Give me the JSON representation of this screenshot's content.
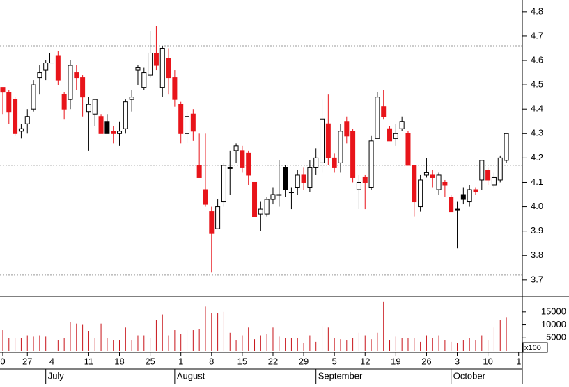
{
  "chart_data": {
    "type": "candlestick",
    "open": [
      4.49,
      4.47,
      4.44,
      4.31,
      4.34,
      4.4,
      4.53,
      4.56,
      4.59,
      4.62,
      4.46,
      4.44,
      4.55,
      4.53,
      4.39,
      4.38,
      4.37,
      4.35,
      4.31,
      4.3,
      4.32,
      4.44,
      4.56,
      4.49,
      4.54,
      4.63,
      4.49,
      4.61,
      4.53,
      4.42,
      4.3,
      4.38,
      4.17,
      4.07,
      3.98,
      3.91,
      4.02,
      4.16,
      4.23,
      4.23,
      4.22,
      4.1,
      3.97,
      3.97,
      4.03,
      4.05,
      4.16,
      4.06,
      4.08,
      4.13,
      4.08,
      4.16,
      4.18,
      4.34,
      4.2,
      4.18,
      4.35,
      4.31,
      4.07,
      4.12,
      4.08,
      4.28,
      4.41,
      4.32,
      4.28,
      4.32,
      4.3,
      4.17,
      4.0,
      4.13,
      4.13,
      4.07,
      4.1,
      4.04,
      3.99,
      4.05,
      4.02,
      4.07,
      4.11,
      4.15,
      4.09,
      4.11,
      4.19
    ],
    "high": [
      4.49,
      4.48,
      4.45,
      4.34,
      4.4,
      4.52,
      4.58,
      4.6,
      4.64,
      4.64,
      4.47,
      4.6,
      4.58,
      4.54,
      4.45,
      4.44,
      4.38,
      4.38,
      4.33,
      4.35,
      4.44,
      4.48,
      4.58,
      4.57,
      4.72,
      4.74,
      4.66,
      4.65,
      4.56,
      4.43,
      4.39,
      4.4,
      4.3,
      4.3,
      4.0,
      4.03,
      4.18,
      4.23,
      4.26,
      4.25,
      4.23,
      4.1,
      4.02,
      4.04,
      4.08,
      4.19,
      4.17,
      4.08,
      4.15,
      4.16,
      4.19,
      4.24,
      4.44,
      4.46,
      4.22,
      4.34,
      4.37,
      4.32,
      4.13,
      4.13,
      4.29,
      4.47,
      4.48,
      4.33,
      4.34,
      4.37,
      4.31,
      4.17,
      4.13,
      4.2,
      4.15,
      4.14,
      4.11,
      4.05,
      4.02,
      4.08,
      4.09,
      4.08,
      4.19,
      4.16,
      4.14,
      4.21,
      4.3
    ],
    "low": [
      4.38,
      4.34,
      4.29,
      4.28,
      4.3,
      4.39,
      4.46,
      4.52,
      4.58,
      4.5,
      4.36,
      4.4,
      4.48,
      4.37,
      4.23,
      4.33,
      4.3,
      4.3,
      4.26,
      4.25,
      4.3,
      4.39,
      4.5,
      4.48,
      4.53,
      4.56,
      4.45,
      4.46,
      4.41,
      4.26,
      4.26,
      4.27,
      4.12,
      4.0,
      3.73,
      3.91,
      4.0,
      4.05,
      4.18,
      4.14,
      4.09,
      3.96,
      3.9,
      3.96,
      4.01,
      4.0,
      4.04,
      3.99,
      4.05,
      4.07,
      4.06,
      4.13,
      4.14,
      4.17,
      4.14,
      4.14,
      4.26,
      4.1,
      3.99,
      3.99,
      4.07,
      4.28,
      4.36,
      4.27,
      4.25,
      4.31,
      4.17,
      3.96,
      3.98,
      4.12,
      4.08,
      4.05,
      4.04,
      3.98,
      3.83,
      4.01,
      4.0,
      4.05,
      4.07,
      4.09,
      4.08,
      4.1,
      4.18
    ],
    "close": [
      4.47,
      4.39,
      4.3,
      4.32,
      4.37,
      4.5,
      4.55,
      4.59,
      4.63,
      4.52,
      4.4,
      4.58,
      4.53,
      4.45,
      4.42,
      4.44,
      4.3,
      4.3,
      4.3,
      4.31,
      4.43,
      4.45,
      4.57,
      4.55,
      4.63,
      4.58,
      4.65,
      4.53,
      4.44,
      4.3,
      4.37,
      4.31,
      4.12,
      4.01,
      3.89,
      4.0,
      4.17,
      4.16,
      4.25,
      4.16,
      4.13,
      3.96,
      3.99,
      4.03,
      4.05,
      4.05,
      4.07,
      4.06,
      4.13,
      4.1,
      4.16,
      4.2,
      4.36,
      4.2,
      4.16,
      4.31,
      4.29,
      4.12,
      4.1,
      4.1,
      4.27,
      4.45,
      4.37,
      4.27,
      4.3,
      4.35,
      4.17,
      4.02,
      4.11,
      4.14,
      4.12,
      4.13,
      4.09,
      3.98,
      3.99,
      4.03,
      4.07,
      4.06,
      4.19,
      4.11,
      4.12,
      4.2,
      4.3
    ],
    "black": [
      17,
      46,
      75
    ],
    "volume": [
      8000,
      5000,
      5000,
      5000,
      6000,
      5500,
      6000,
      5500,
      7500,
      4000,
      5000,
      11000,
      10500,
      10000,
      7500,
      5000,
      10500,
      5000,
      4000,
      4000,
      9000,
      4000,
      6000,
      6000,
      5000,
      12000,
      14000,
      6000,
      8000,
      6500,
      8000,
      8000,
      8500,
      17000,
      14500,
      14500,
      15000,
      7000,
      4000,
      6000,
      9000,
      4500,
      6000,
      6500,
      9000,
      5500,
      5000,
      5000,
      5000,
      3000,
      6000,
      3500,
      9500,
      9000,
      5000,
      4500,
      4000,
      5000,
      7000,
      6000,
      4500,
      7000,
      19000,
      4000,
      5500,
      5000,
      5000,
      5000,
      3500,
      6000,
      5000,
      6000,
      4000,
      3500,
      3000,
      4000,
      5000,
      4000,
      6000,
      4000,
      9000,
      12000,
      13000
    ],
    "ylim": [
      3.634,
      4.848
    ],
    "yticks": [
      {
        "value": 4.8,
        "label": "4.8"
      },
      4.7,
      4.6,
      4.5,
      4.4,
      4.3,
      4.2,
      4.1,
      {
        "value": 4,
        "label": "4.0"
      },
      3.9,
      3.8,
      3.7
    ],
    "volume_ylim": [
      0,
      20560
    ],
    "volume_yticks": [
      15000,
      10000,
      5000
    ],
    "volume_unit": "x100",
    "xlim": [
      -0.45,
      84.6
    ],
    "xticks": [
      {
        "value": 0,
        "label": "0"
      },
      {
        "value": 4,
        "label": "27"
      },
      {
        "value": 8,
        "label": "4"
      },
      {
        "value": 14,
        "label": "11"
      },
      {
        "value": 19,
        "label": "18"
      },
      {
        "value": 24,
        "label": "25"
      },
      {
        "value": 29,
        "label": "1"
      },
      {
        "value": 34,
        "label": "8"
      },
      {
        "value": 39,
        "label": "15"
      },
      {
        "value": 44,
        "label": "22"
      },
      {
        "value": 49,
        "label": "29"
      },
      {
        "value": 54,
        "label": "5"
      },
      {
        "value": 59,
        "label": "12"
      },
      {
        "value": 64,
        "label": "19"
      },
      {
        "value": 69,
        "label": "26"
      },
      {
        "value": 74,
        "label": "3"
      },
      {
        "value": 79,
        "label": "10"
      },
      {
        "value": 84,
        "label": "1"
      }
    ],
    "months": [
      {
        "value": 7,
        "label": "July"
      },
      {
        "value": 28,
        "label": "August"
      },
      {
        "value": 51,
        "label": "September"
      },
      {
        "value": 73,
        "label": "October"
      }
    ],
    "reference_lines": [
      4.66,
      4.17,
      3.72
    ],
    "colors": {
      "up": "#ffffff",
      "down": "#e8141a",
      "black": "#000000",
      "outline": "#000000",
      "volume": "#c8141a"
    }
  }
}
